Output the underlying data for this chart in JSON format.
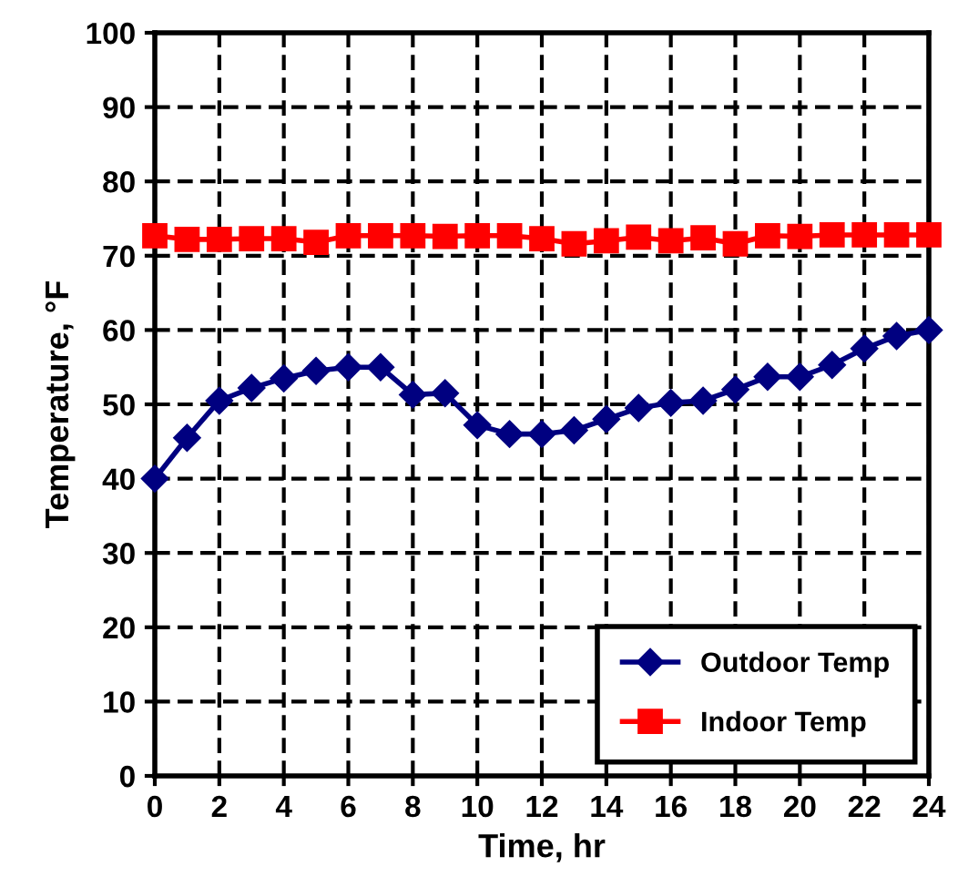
{
  "chart_data": {
    "type": "line",
    "xlabel": "Time, hr",
    "ylabel": "Temperature, °F",
    "x": [
      0,
      1,
      2,
      3,
      4,
      5,
      6,
      7,
      8,
      9,
      10,
      11,
      12,
      13,
      14,
      15,
      16,
      17,
      18,
      19,
      20,
      21,
      22,
      23,
      24
    ],
    "series": [
      {
        "name": "Outdoor Temp",
        "color": "#000080",
        "marker": "diamond",
        "values": [
          40,
          45.5,
          50.5,
          52.2,
          53.5,
          54.5,
          55,
          55,
          51.3,
          51.5,
          47.2,
          46,
          46,
          46.5,
          48,
          49.5,
          50.2,
          50.5,
          52,
          53.7,
          53.7,
          55.3,
          57.5,
          59.2,
          60
        ]
      },
      {
        "name": "Indoor Temp",
        "color": "#ff0000",
        "marker": "square",
        "values": [
          72.7,
          72.2,
          72.2,
          72.3,
          72.3,
          71.8,
          72.7,
          72.7,
          72.7,
          72.6,
          72.7,
          72.7,
          72.3,
          71.6,
          72,
          72.5,
          72,
          72.4,
          71.6,
          72.7,
          72.6,
          72.8,
          72.8,
          72.8,
          72.8
        ]
      }
    ],
    "xlim": [
      0,
      24
    ],
    "xticks": [
      0,
      2,
      4,
      6,
      8,
      10,
      12,
      14,
      16,
      18,
      20,
      22,
      24
    ],
    "ylim": [
      0,
      100
    ],
    "yticks": [
      0,
      10,
      20,
      30,
      40,
      50,
      60,
      70,
      80,
      90,
      100
    ],
    "grid": true,
    "legend": "bottom right",
    "line_style": "solid"
  }
}
